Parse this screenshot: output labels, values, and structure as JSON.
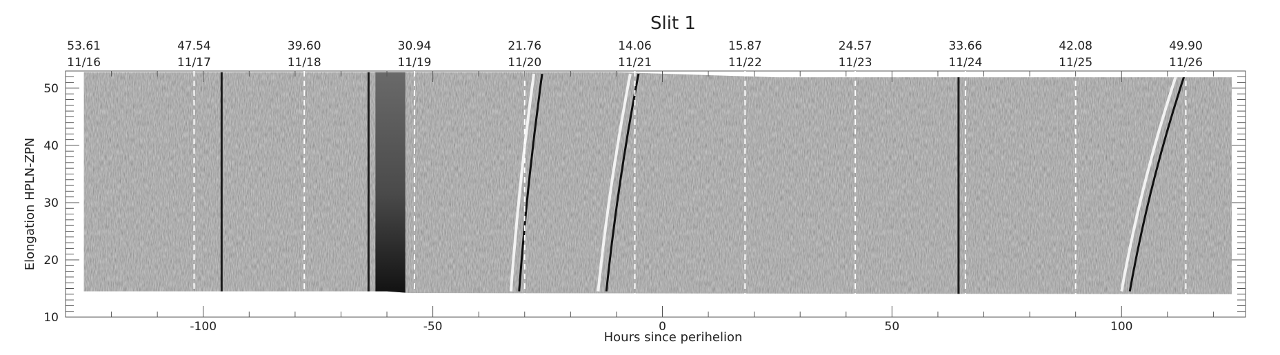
{
  "chart_data": {
    "type": "heatmap",
    "title": "Slit 1",
    "xlabel": "Hours since perihelion",
    "ylabel": "Elongation  HPLN-ZPN",
    "xlim": [
      -130,
      127
    ],
    "ylim": [
      10,
      53
    ],
    "x_ticks": [
      -100,
      -50,
      0,
      50,
      100
    ],
    "y_ticks": [
      10,
      20,
      30,
      40,
      50
    ],
    "top_axis": [
      {
        "x": -126,
        "value": "53.61",
        "date": "11/16"
      },
      {
        "x": -102,
        "value": "47.54",
        "date": "11/17"
      },
      {
        "x": -78,
        "value": "39.60",
        "date": "11/18"
      },
      {
        "x": -54,
        "value": "30.94",
        "date": "11/19"
      },
      {
        "x": -30,
        "value": "21.76",
        "date": "11/20"
      },
      {
        "x": -6,
        "value": "14.06",
        "date": "11/21"
      },
      {
        "x": 18,
        "value": "15.87",
        "date": "11/22"
      },
      {
        "x": 42,
        "value": "24.57",
        "date": "11/23"
      },
      {
        "x": 66,
        "value": "33.66",
        "date": "11/24"
      },
      {
        "x": 90,
        "value": "42.08",
        "date": "11/25"
      },
      {
        "x": 114,
        "value": "49.90",
        "date": "11/26"
      }
    ],
    "day_boundaries": [
      -102,
      -78,
      -54,
      -30,
      -6,
      18,
      42,
      66,
      90,
      114
    ],
    "image": {
      "colormap": "grayscale",
      "x_range": [
        -126,
        124
      ],
      "y_top": [
        [
          -126,
          52.8
        ],
        [
          -10,
          52.8
        ],
        [
          25,
          51.9
        ],
        [
          124,
          51.9
        ]
      ],
      "y_bottom": [
        [
          -126,
          14.5
        ],
        [
          -60,
          14.5
        ],
        [
          -55,
          14.2
        ],
        [
          124,
          14.0
        ]
      ],
      "gap_band": [
        -62.5,
        -56
      ],
      "bright_tracks": [
        {
          "x_bottom": -33,
          "x_top": -28
        },
        {
          "x_bottom": -14,
          "x_top": -7
        },
        {
          "x_bottom": 100,
          "x_top": 112
        }
      ],
      "vertical_streaks": [
        -96,
        -64,
        64.5
      ]
    }
  }
}
